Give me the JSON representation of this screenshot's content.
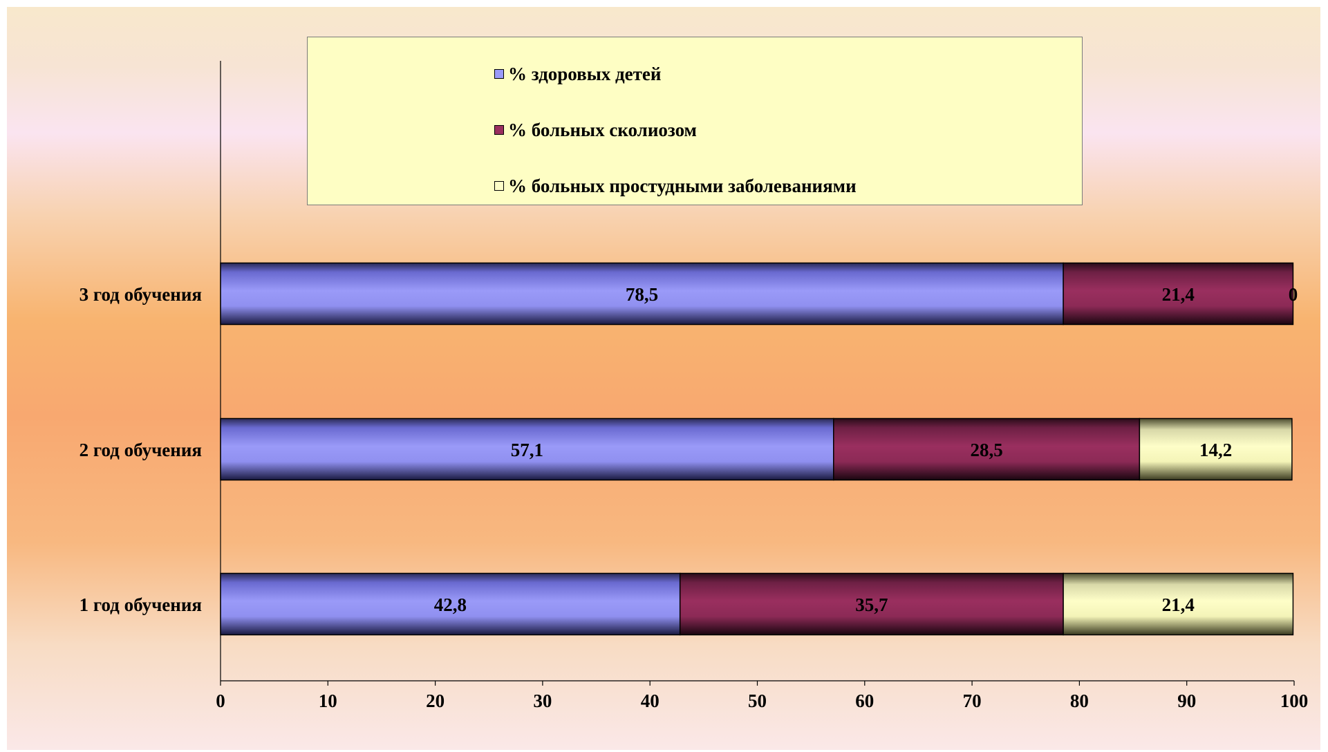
{
  "chart_data": {
    "type": "bar",
    "orientation": "horizontal",
    "stacked": true,
    "categories": [
      "1 год обучения",
      "2 год обучения",
      "3 год обучения"
    ],
    "series": [
      {
        "name": "% здоровых детей",
        "color": "#9a9af8",
        "values": [
          42.8,
          57.1,
          78.5
        ],
        "labels": [
          "42,8",
          "57,1",
          "78,5"
        ]
      },
      {
        "name": "% больных сколиозом",
        "color": "#9a2f5f",
        "values": [
          35.7,
          28.5,
          21.4
        ],
        "labels": [
          "35,7",
          "28,5",
          "21,4"
        ]
      },
      {
        "name": "% больных простудными заболеваниями",
        "color": "#fefec8",
        "values": [
          21.4,
          14.2,
          0
        ],
        "labels": [
          "21,4",
          "14,2",
          "0"
        ]
      }
    ],
    "xlim": [
      0,
      100
    ],
    "xticks": [
      0,
      10,
      20,
      30,
      40,
      50,
      60,
      70,
      80,
      90,
      100
    ],
    "legend_position": "top",
    "grid": false,
    "title": "",
    "xlabel": "",
    "ylabel": ""
  }
}
